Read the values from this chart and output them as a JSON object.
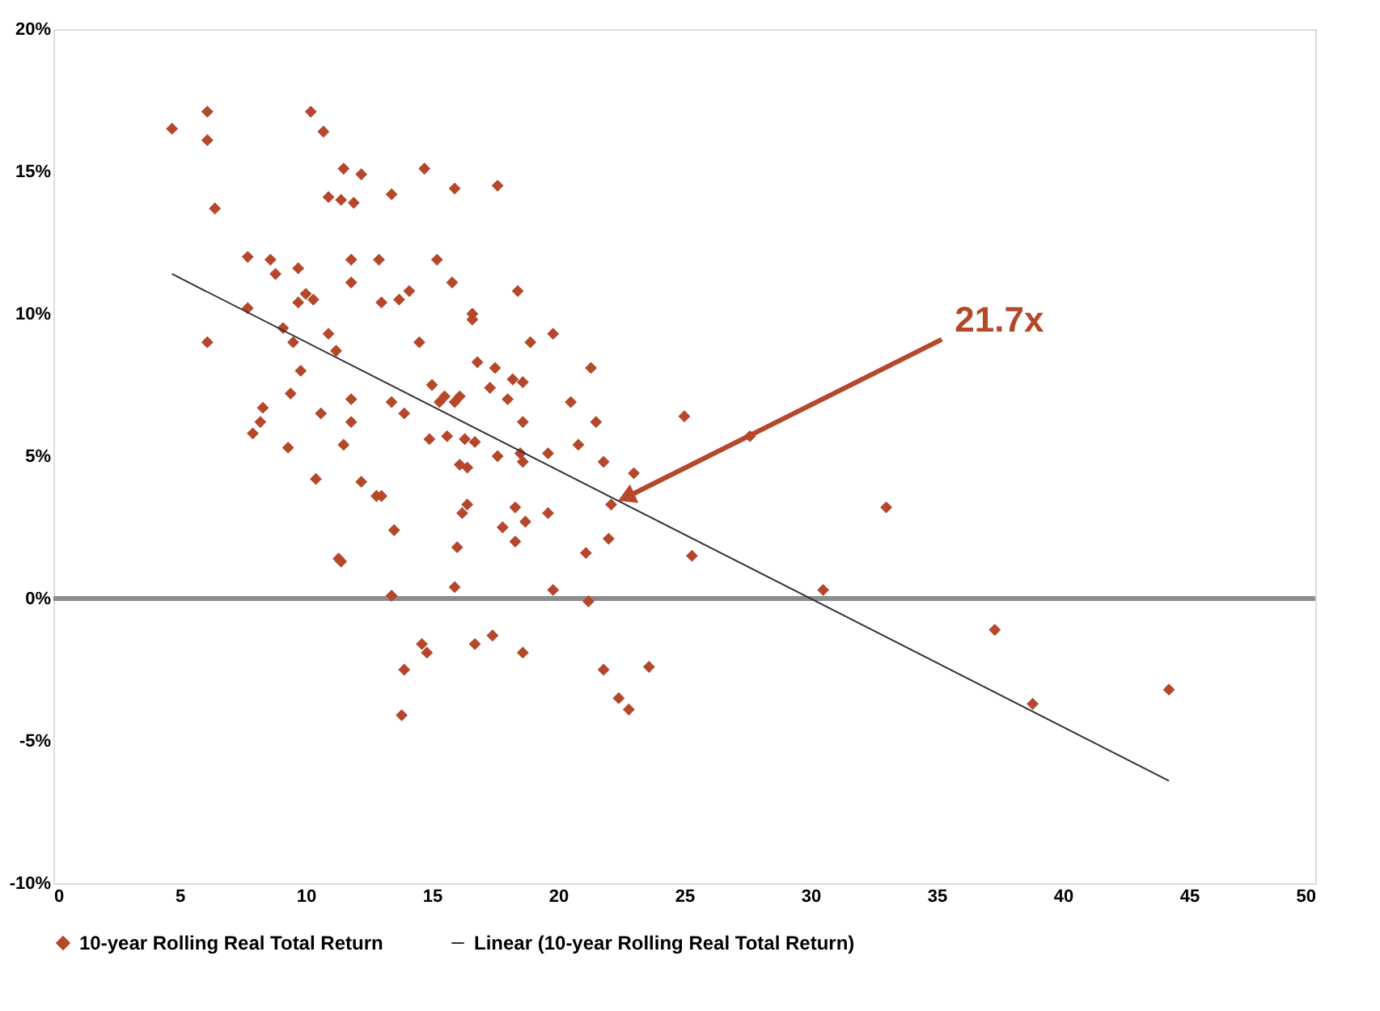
{
  "chart_data": {
    "type": "scatter",
    "xlim": [
      0,
      50
    ],
    "xticks": [
      0,
      5,
      10,
      15,
      20,
      25,
      30,
      35,
      40,
      45,
      50
    ],
    "ylim": [
      -10,
      20
    ],
    "yticks": [
      {
        "value": -10,
        "label": "-10%"
      },
      {
        "value": -5,
        "label": "-5%"
      },
      {
        "value": 0,
        "label": "0%"
      },
      {
        "value": 5,
        "label": "5%"
      },
      {
        "value": 10,
        "label": "10%"
      },
      {
        "value": 15,
        "label": "15%"
      },
      {
        "value": 20,
        "label": "20%"
      }
    ],
    "grid": false,
    "legend": "bottom",
    "ref_lines": [
      {
        "axis": "y",
        "value": 0,
        "color": "#8c8c8c"
      }
    ],
    "annotations": [
      {
        "text": "21.7x",
        "x": 22.8,
        "y": 3.6
      }
    ],
    "series": [
      {
        "name": "10-year Rolling Real Total Return",
        "marker": "diamond",
        "color": "#b5472a",
        "x": [
          4.7,
          6.1,
          6.1,
          6.4,
          6.1,
          7.7,
          7.7,
          7.9,
          8.3,
          8.2,
          8.6,
          8.8,
          9.1,
          9.4,
          9.3,
          9.5,
          9.7,
          9.8,
          9.7,
          10.0,
          10.3,
          10.2,
          10.7,
          10.9,
          10.4,
          10.6,
          10.9,
          11.2,
          11.5,
          11.4,
          11.9,
          11.8,
          11.8,
          11.8,
          11.8,
          11.5,
          11.3,
          11.4,
          12.2,
          12.2,
          12.8,
          12.9,
          13.0,
          13.0,
          13.4,
          13.4,
          13.5,
          13.4,
          13.7,
          13.9,
          14.1,
          13.8,
          13.9,
          14.5,
          14.7,
          14.6,
          14.8,
          15.0,
          15.2,
          14.9,
          15.3,
          15.5,
          15.6,
          15.9,
          15.8,
          16.1,
          15.9,
          16.0,
          15.9,
          16.3,
          16.1,
          16.2,
          16.4,
          16.4,
          16.6,
          16.6,
          16.7,
          16.7,
          16.8,
          17.3,
          17.4,
          17.6,
          17.5,
          17.6,
          17.8,
          18.0,
          18.2,
          18.3,
          18.3,
          18.4,
          18.6,
          18.6,
          18.5,
          18.6,
          18.7,
          18.6,
          18.9,
          19.6,
          19.6,
          19.8,
          19.8,
          20.5,
          20.8,
          21.1,
          21.3,
          21.2,
          21.5,
          21.8,
          21.8,
          22.0,
          22.1,
          22.4,
          22.8,
          23.0,
          23.6,
          25.0,
          25.3,
          27.6,
          30.5,
          33.0,
          37.3,
          38.8,
          44.2
        ],
        "values": [
          16.5,
          17.1,
          16.1,
          13.7,
          9.0,
          12.0,
          10.2,
          5.8,
          6.7,
          6.2,
          11.9,
          11.4,
          9.5,
          7.2,
          5.3,
          9.0,
          11.6,
          8.0,
          10.4,
          10.7,
          10.5,
          17.1,
          16.4,
          14.1,
          4.2,
          6.5,
          9.3,
          8.7,
          15.1,
          14.0,
          13.9,
          11.9,
          11.1,
          7.0,
          6.2,
          5.4,
          1.4,
          1.3,
          14.9,
          4.1,
          3.6,
          11.9,
          10.4,
          3.6,
          14.2,
          6.9,
          2.4,
          0.1,
          10.5,
          6.5,
          10.8,
          -4.1,
          -2.5,
          9.0,
          15.1,
          -1.6,
          -1.9,
          7.5,
          11.9,
          5.6,
          6.9,
          7.1,
          5.7,
          14.4,
          11.1,
          7.1,
          6.9,
          1.8,
          0.4,
          5.6,
          4.7,
          3.0,
          3.3,
          4.6,
          10.0,
          9.8,
          5.5,
          -1.6,
          8.3,
          7.4,
          -1.3,
          14.5,
          8.1,
          5.0,
          2.5,
          7.0,
          7.7,
          3.2,
          2.0,
          10.8,
          7.6,
          6.2,
          5.1,
          4.8,
          2.7,
          -1.9,
          9.0,
          3.0,
          5.1,
          9.3,
          0.3,
          6.9,
          5.4,
          1.6,
          8.1,
          -0.1,
          6.2,
          4.8,
          -2.5,
          2.1,
          3.3,
          -3.5,
          -3.9,
          4.4,
          -2.4,
          6.4,
          1.5,
          5.7,
          0.3,
          3.2,
          -1.1,
          -3.7,
          -3.2
        ]
      },
      {
        "name": "Linear (10-year Rolling Real Total Return)",
        "type": "line",
        "color": "#333333",
        "x": [
          4.7,
          44.2
        ],
        "values": [
          11.4,
          -6.4
        ]
      }
    ]
  }
}
